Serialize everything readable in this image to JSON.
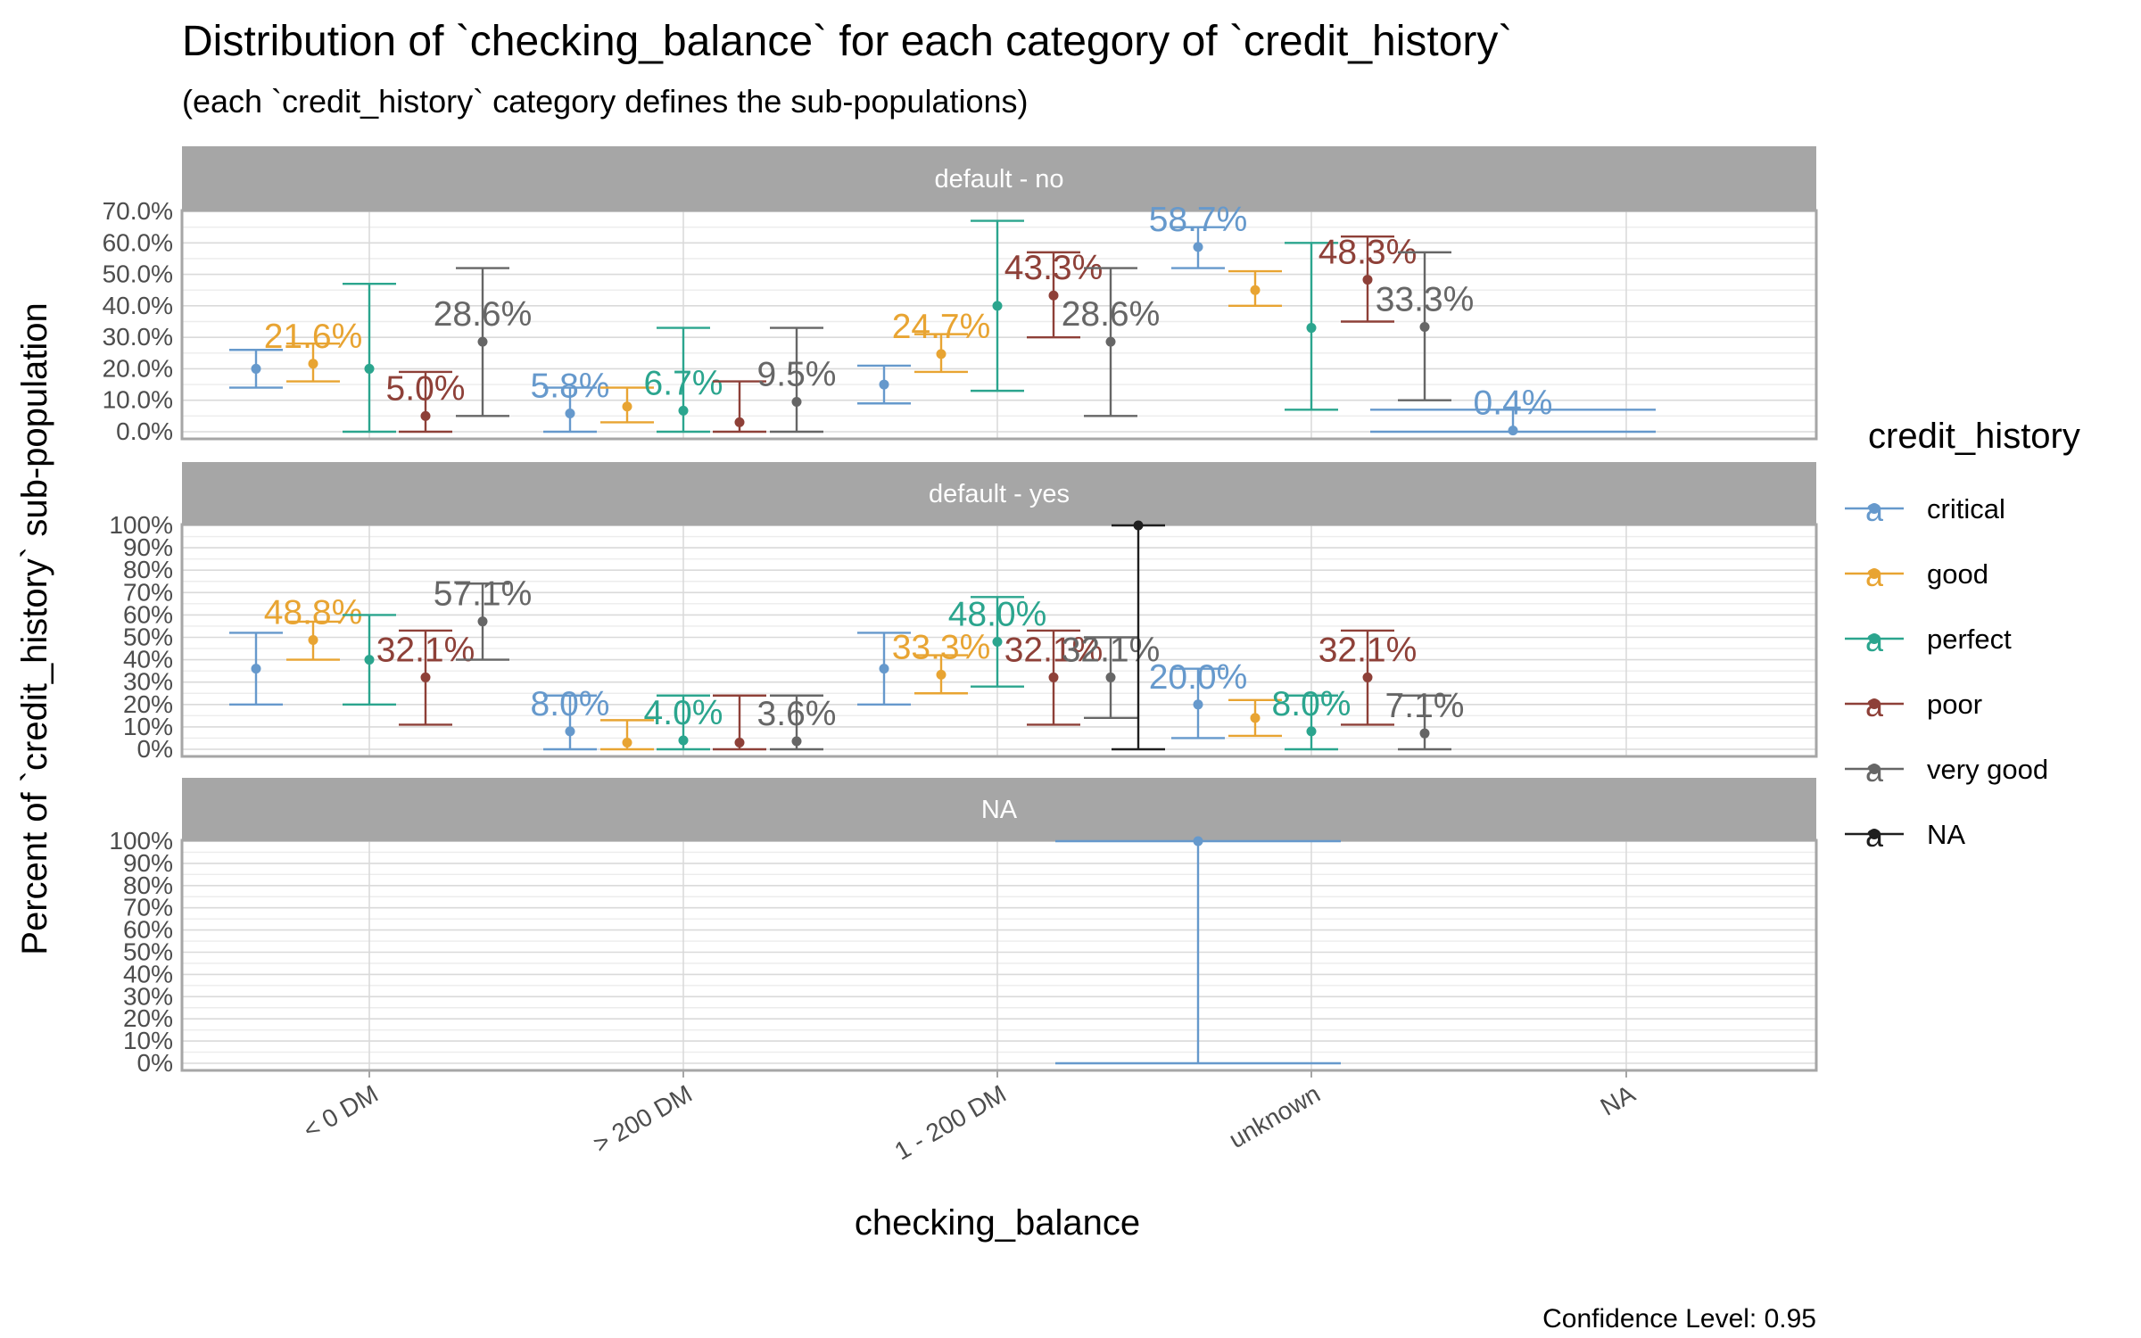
{
  "chart_data": {
    "type": "errorbar-dot",
    "title": "Distribution of `checking_balance` for each category of `credit_history`",
    "subtitle": "(each `credit_history` category defines the sub-populations)",
    "xlabel": "checking_balance",
    "ylabel": "Percent of `credit_history` sub-population",
    "caption": "Confidence Level: 0.95",
    "categories": [
      "< 0 DM",
      "> 200 DM",
      "1 - 200 DM",
      "unknown",
      "NA"
    ],
    "legend": {
      "title": "credit_history",
      "position": "right",
      "glyph": "a",
      "items": [
        {
          "name": "critical",
          "color": "#6699CC"
        },
        {
          "name": "good",
          "color": "#E8A432"
        },
        {
          "name": "perfect",
          "color": "#2BA58E"
        },
        {
          "name": "poor",
          "color": "#8E4038"
        },
        {
          "name": "very good",
          "color": "#666666"
        },
        {
          "name": "NA",
          "color": "#1F1F1F"
        }
      ]
    },
    "panels": [
      {
        "strip": "default - no",
        "ylim": [
          0,
          0.7
        ],
        "yticks": [
          {
            "v": 0.0,
            "label": "0.0%"
          },
          {
            "v": 0.1,
            "label": "10.0%"
          },
          {
            "v": 0.2,
            "label": "20.0%"
          },
          {
            "v": 0.3,
            "label": "30.0%"
          },
          {
            "v": 0.4,
            "label": "40.0%"
          },
          {
            "v": 0.5,
            "label": "50.0%"
          },
          {
            "v": 0.6,
            "label": "60.0%"
          },
          {
            "v": 0.7,
            "label": "70.0%"
          }
        ],
        "points": [
          {
            "x": 0,
            "s": 0,
            "y": 0.2,
            "lo": 0.14,
            "hi": 0.26
          },
          {
            "x": 0,
            "s": 1,
            "y": 0.216,
            "lo": 0.16,
            "hi": 0.28,
            "label": "21.6%"
          },
          {
            "x": 0,
            "s": 2,
            "y": 0.2,
            "lo": 0.0,
            "hi": 0.47
          },
          {
            "x": 0,
            "s": 3,
            "y": 0.05,
            "lo": 0.0,
            "hi": 0.19,
            "label": "5.0%"
          },
          {
            "x": 0,
            "s": 4,
            "y": 0.286,
            "lo": 0.05,
            "hi": 0.52,
            "label": "28.6%"
          },
          {
            "x": 1,
            "s": 0,
            "y": 0.058,
            "lo": 0.0,
            "hi": 0.14,
            "label": "5.8%"
          },
          {
            "x": 1,
            "s": 1,
            "y": 0.08,
            "lo": 0.03,
            "hi": 0.14
          },
          {
            "x": 1,
            "s": 2,
            "y": 0.067,
            "lo": 0.0,
            "hi": 0.33,
            "label": "6.7%"
          },
          {
            "x": 1,
            "s": 3,
            "y": 0.03,
            "lo": 0.0,
            "hi": 0.16
          },
          {
            "x": 1,
            "s": 4,
            "y": 0.095,
            "lo": 0.0,
            "hi": 0.33,
            "label": "9.5%"
          },
          {
            "x": 2,
            "s": 0,
            "y": 0.15,
            "lo": 0.09,
            "hi": 0.21
          },
          {
            "x": 2,
            "s": 1,
            "y": 0.247,
            "lo": 0.19,
            "hi": 0.31,
            "label": "24.7%"
          },
          {
            "x": 2,
            "s": 2,
            "y": 0.4,
            "lo": 0.13,
            "hi": 0.67
          },
          {
            "x": 2,
            "s": 3,
            "y": 0.433,
            "lo": 0.3,
            "hi": 0.57,
            "label": "43.3%"
          },
          {
            "x": 2,
            "s": 4,
            "y": 0.286,
            "lo": 0.05,
            "hi": 0.52,
            "label": "28.6%"
          },
          {
            "x": 3,
            "s": 0,
            "y": 0.587,
            "lo": 0.52,
            "hi": 0.65,
            "label": "58.7%"
          },
          {
            "x": 3,
            "s": 1,
            "y": 0.45,
            "lo": 0.4,
            "hi": 0.51
          },
          {
            "x": 3,
            "s": 2,
            "y": 0.33,
            "lo": 0.07,
            "hi": 0.6
          },
          {
            "x": 3,
            "s": 3,
            "y": 0.483,
            "lo": 0.35,
            "hi": 0.62,
            "label": "48.3%"
          },
          {
            "x": 3,
            "s": 4,
            "y": 0.333,
            "lo": 0.1,
            "hi": 0.57,
            "label": "33.3%"
          },
          {
            "x": 4,
            "s": 0,
            "y": 0.004,
            "lo": 0.0,
            "hi": 0.07,
            "label": "0.4%",
            "wide": true
          }
        ]
      },
      {
        "strip": "default - yes",
        "ylim": [
          0,
          1.0
        ],
        "yticks": [
          {
            "v": 0.0,
            "label": "0%"
          },
          {
            "v": 0.1,
            "label": "10%"
          },
          {
            "v": 0.2,
            "label": "20%"
          },
          {
            "v": 0.3,
            "label": "30%"
          },
          {
            "v": 0.4,
            "label": "40%"
          },
          {
            "v": 0.5,
            "label": "50%"
          },
          {
            "v": 0.6,
            "label": "60%"
          },
          {
            "v": 0.7,
            "label": "70%"
          },
          {
            "v": 0.8,
            "label": "80%"
          },
          {
            "v": 0.9,
            "label": "90%"
          },
          {
            "v": 1.0,
            "label": "100%"
          }
        ],
        "points": [
          {
            "x": 0,
            "s": 0,
            "y": 0.36,
            "lo": 0.2,
            "hi": 0.52
          },
          {
            "x": 0,
            "s": 1,
            "y": 0.488,
            "lo": 0.4,
            "hi": 0.57,
            "label": "48.8%"
          },
          {
            "x": 0,
            "s": 2,
            "y": 0.4,
            "lo": 0.2,
            "hi": 0.6
          },
          {
            "x": 0,
            "s": 3,
            "y": 0.321,
            "lo": 0.11,
            "hi": 0.53,
            "label": "32.1%"
          },
          {
            "x": 0,
            "s": 4,
            "y": 0.571,
            "lo": 0.4,
            "hi": 0.74,
            "label": "57.1%"
          },
          {
            "x": 1,
            "s": 0,
            "y": 0.08,
            "lo": 0.0,
            "hi": 0.24,
            "label": "8.0%"
          },
          {
            "x": 1,
            "s": 1,
            "y": 0.03,
            "lo": 0.0,
            "hi": 0.13
          },
          {
            "x": 1,
            "s": 2,
            "y": 0.04,
            "lo": 0.0,
            "hi": 0.24,
            "label": "4.0%"
          },
          {
            "x": 1,
            "s": 3,
            "y": 0.03,
            "lo": 0.0,
            "hi": 0.24
          },
          {
            "x": 1,
            "s": 4,
            "y": 0.036,
            "lo": 0.0,
            "hi": 0.24,
            "label": "3.6%"
          },
          {
            "x": 2,
            "s": 0,
            "y": 0.36,
            "lo": 0.2,
            "hi": 0.52
          },
          {
            "x": 2,
            "s": 1,
            "y": 0.333,
            "lo": 0.25,
            "hi": 0.42,
            "label": "33.3%"
          },
          {
            "x": 2,
            "s": 2,
            "y": 0.48,
            "lo": 0.28,
            "hi": 0.68,
            "label": "48.0%"
          },
          {
            "x": 2,
            "s": 3,
            "y": 0.321,
            "lo": 0.11,
            "hi": 0.53,
            "label": "32.1%"
          },
          {
            "x": 2,
            "s": 4,
            "y": 0.321,
            "lo": 0.14,
            "hi": 0.5,
            "label": "32.1%"
          },
          {
            "x": 2,
            "s": 5,
            "y": 1.0,
            "lo": 0.0,
            "hi": 1.0
          },
          {
            "x": 3,
            "s": 0,
            "y": 0.2,
            "lo": 0.05,
            "hi": 0.36,
            "label": "20.0%"
          },
          {
            "x": 3,
            "s": 1,
            "y": 0.14,
            "lo": 0.06,
            "hi": 0.22
          },
          {
            "x": 3,
            "s": 2,
            "y": 0.08,
            "lo": 0.0,
            "hi": 0.24,
            "label": "8.0%"
          },
          {
            "x": 3,
            "s": 3,
            "y": 0.321,
            "lo": 0.11,
            "hi": 0.53,
            "label": "32.1%"
          },
          {
            "x": 3,
            "s": 4,
            "y": 0.071,
            "lo": 0.0,
            "hi": 0.24,
            "label": "7.1%"
          }
        ]
      },
      {
        "strip": "NA",
        "ylim": [
          0,
          1.0
        ],
        "yticks": [
          {
            "v": 0.0,
            "label": "0%"
          },
          {
            "v": 0.1,
            "label": "10%"
          },
          {
            "v": 0.2,
            "label": "20%"
          },
          {
            "v": 0.3,
            "label": "30%"
          },
          {
            "v": 0.4,
            "label": "40%"
          },
          {
            "v": 0.5,
            "label": "50%"
          },
          {
            "v": 0.6,
            "label": "60%"
          },
          {
            "v": 0.7,
            "label": "70%"
          },
          {
            "v": 0.8,
            "label": "80%"
          },
          {
            "v": 0.9,
            "label": "90%"
          },
          {
            "v": 1.0,
            "label": "100%"
          }
        ],
        "points": [
          {
            "x": 3,
            "s": 0,
            "y": 1.0,
            "lo": 0.0,
            "hi": 1.0,
            "wide": true
          }
        ]
      }
    ]
  }
}
